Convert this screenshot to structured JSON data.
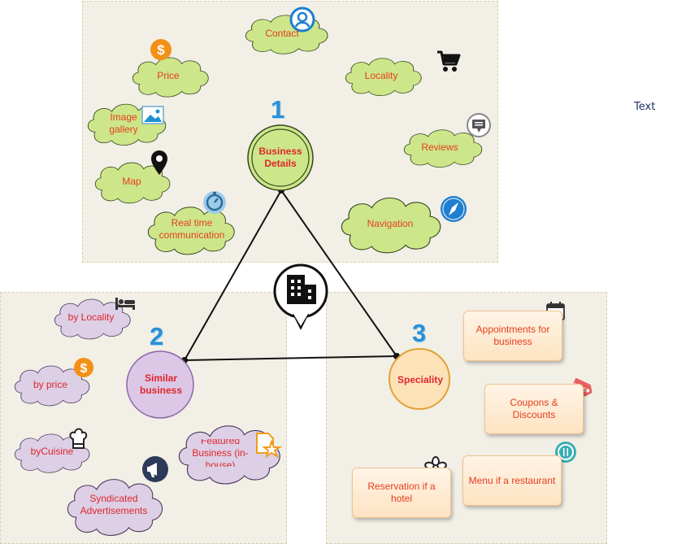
{
  "side_text": "Text",
  "center": {
    "num": "1",
    "label": "Business Details"
  },
  "left_hub": {
    "num": "2",
    "label": "Similar business"
  },
  "right_hub": {
    "num": "3",
    "label": "Speciality"
  },
  "top_clouds": [
    "Contact",
    "Price",
    "Locality",
    "Image gallery",
    "Reviews",
    "Map",
    "Real time communication",
    "Navigation"
  ],
  "left_clouds": [
    "by Locality",
    "by price",
    "byCuisine",
    "Featured Business (in-house)",
    "Syndicated Advertisements"
  ],
  "right_boxes": [
    "Appointments for business",
    "Coupons & Discounts",
    "Reservation if a hotel",
    "Menu if a restaurant"
  ],
  "colors": {
    "cloud_green": "#cde68a",
    "cloud_purple": "#dccfe6",
    "hub_purple": "#dcc7e6",
    "hub_orange": "#fde2b8",
    "label_red": "#e53d1f",
    "number_blue": "#2b8fd6"
  },
  "icons": [
    "contact-icon",
    "dollar-icon",
    "cart-icon",
    "image-icon",
    "chat-icon",
    "map-pin-icon",
    "timer-icon",
    "compass-icon",
    "building-pin-icon",
    "bed-icon",
    "chef-hat-icon",
    "megaphone-icon",
    "star-doc-icon",
    "calendar-icon",
    "sale-tag-icon",
    "flower-icon",
    "cutlery-icon"
  ]
}
